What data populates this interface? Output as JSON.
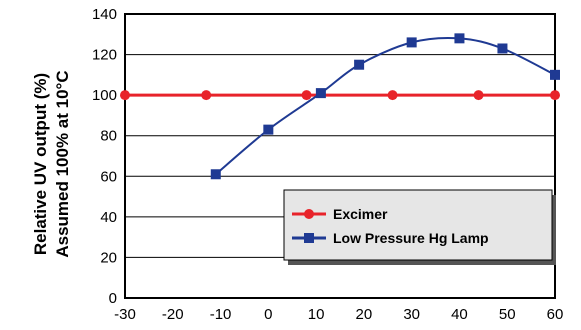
{
  "chart_data": {
    "type": "line",
    "title": "",
    "xlabel": "",
    "ylabel_lines": [
      "Relative UV output (%)",
      "Assumed 100% at 10°C"
    ],
    "xlim": [
      -30,
      60
    ],
    "ylim": [
      0,
      140
    ],
    "x_ticks": [
      -30,
      -20,
      -10,
      0,
      10,
      20,
      30,
      40,
      50,
      60
    ],
    "y_ticks": [
      0,
      20,
      40,
      60,
      80,
      100,
      120,
      140
    ],
    "grid": "horizontal",
    "legend_position": "bottom-right",
    "series": [
      {
        "name": "Excimer",
        "color": "#e8232a",
        "marker": "circle",
        "x": [
          -30,
          -13,
          8,
          26,
          44,
          60
        ],
        "y": [
          100,
          100,
          100,
          100,
          100,
          100
        ]
      },
      {
        "name": "Low Pressure Hg Lamp",
        "color": "#1f3a93",
        "marker": "square",
        "x": [
          -11,
          0,
          11,
          19,
          30,
          40,
          49,
          60
        ],
        "y": [
          61,
          83,
          101,
          115,
          126,
          128,
          123,
          110
        ]
      }
    ]
  }
}
